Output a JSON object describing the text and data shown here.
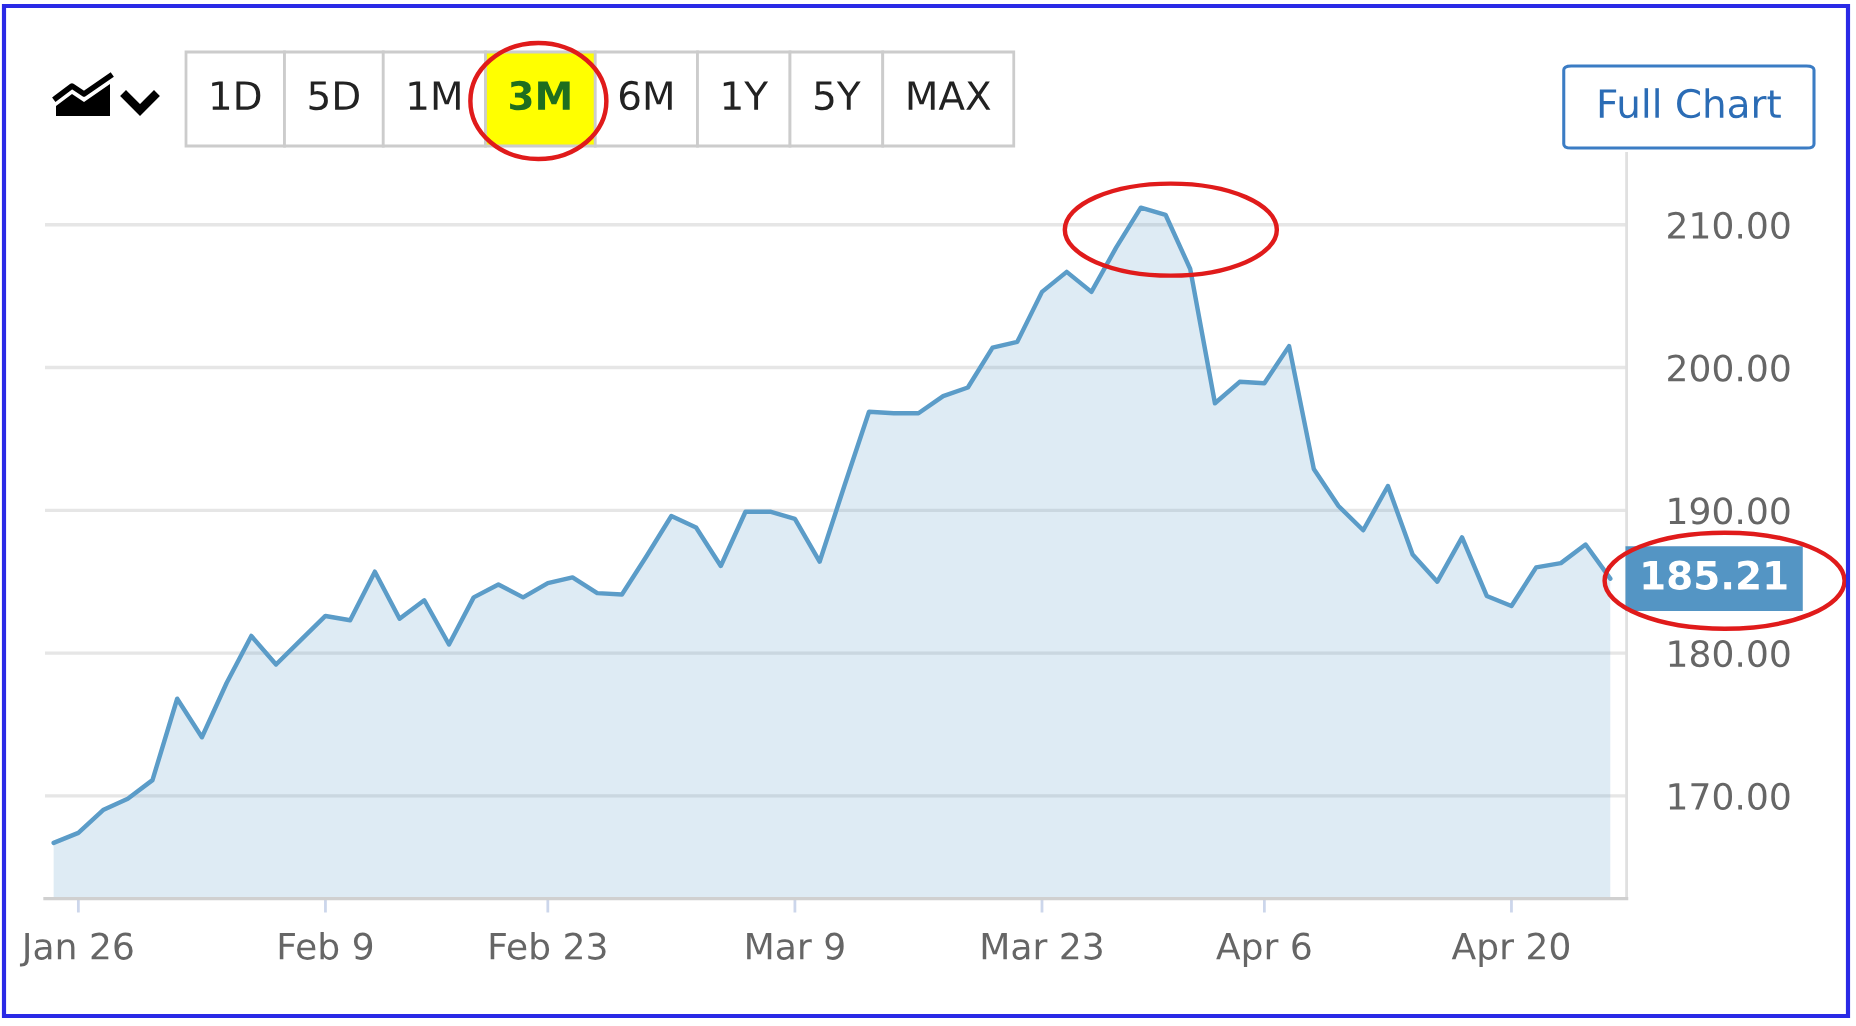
{
  "chart_data": {
    "type": "area",
    "categories": [
      null,
      "Jan 26",
      null,
      null,
      null,
      null,
      null,
      null,
      null,
      null,
      null,
      "Feb 9",
      null,
      null,
      null,
      null,
      null,
      null,
      null,
      null,
      "Feb 23",
      null,
      null,
      null,
      null,
      null,
      null,
      null,
      null,
      null,
      "Mar 9",
      null,
      null,
      null,
      null,
      null,
      null,
      null,
      null,
      null,
      "Mar 23",
      null,
      null,
      null,
      null,
      null,
      null,
      null,
      null,
      "Apr 6",
      null,
      null,
      null,
      null,
      null,
      null,
      null,
      null,
      null,
      "Apr 20",
      null,
      null,
      null,
      null
    ],
    "series": [
      {
        "color": "#5b9cc8",
        "values": [
          166.7,
          167.4,
          169.0,
          169.8,
          171.1,
          176.8,
          174.1,
          177.9,
          181.2,
          179.2,
          180.9,
          182.6,
          182.3,
          185.7,
          182.4,
          183.7,
          180.6,
          183.9,
          184.8,
          183.9,
          184.9,
          185.3,
          184.2,
          184.1,
          186.8,
          189.6,
          188.8,
          186.1,
          189.9,
          189.9,
          189.4,
          186.4,
          191.7,
          196.9,
          196.8,
          196.8,
          198.0,
          198.6,
          201.4,
          201.8,
          205.3,
          206.7,
          205.3,
          208.4,
          211.2,
          210.7,
          206.9,
          197.5,
          199.0,
          198.9,
          201.5,
          192.9,
          190.3,
          188.6,
          191.7,
          186.9,
          185.0,
          188.1,
          184.0,
          183.3,
          186.0,
          186.3,
          187.6,
          185.21
        ],
        "value_labels": [
          null,
          null,
          null,
          null,
          null,
          null,
          null,
          null,
          null,
          null,
          null,
          null,
          null,
          null,
          null,
          null,
          null,
          null,
          null,
          null,
          null,
          null,
          null,
          null,
          null,
          null,
          null,
          null,
          null,
          null,
          null,
          null,
          null,
          null,
          null,
          null,
          null,
          null,
          null,
          null,
          null,
          null,
          null,
          null,
          null,
          null,
          null,
          null,
          null,
          null,
          null,
          null,
          null,
          null,
          null,
          null,
          null,
          null,
          null,
          null,
          null,
          null,
          null,
          "185.21"
        ]
      }
    ],
    "ylim": [
      162.8,
      215
    ],
    "yticks": [
      {
        "value": 170,
        "label": "170.00"
      },
      {
        "value": 180,
        "label": "180.00"
      },
      {
        "value": 190,
        "label": "190.00"
      },
      {
        "value": 200,
        "label": "200.00"
      },
      {
        "value": 210,
        "label": "210.00"
      }
    ],
    "grid": "y",
    "annotations": [
      "1D",
      "5D",
      "1M",
      "3M",
      "6M",
      "1Y",
      "5Y",
      "MAX",
      "Full Chart"
    ]
  }
}
